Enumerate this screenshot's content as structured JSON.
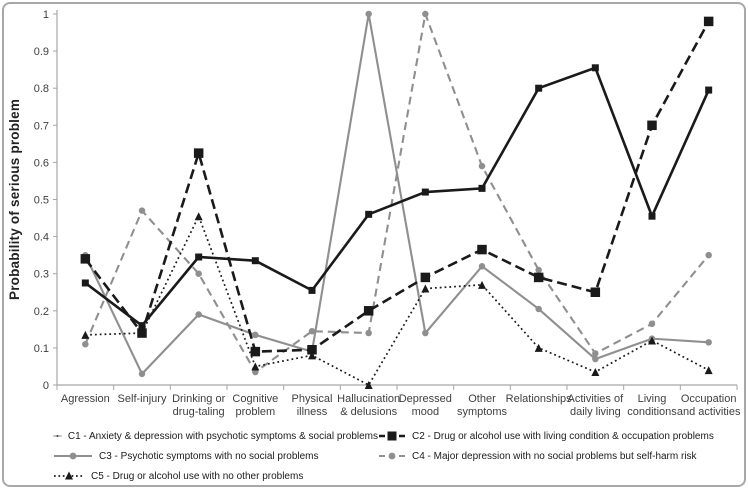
{
  "chart_data": {
    "type": "line",
    "title": "",
    "xlabel": "",
    "ylabel": "Probability of serious problem",
    "ylim": [
      0,
      1
    ],
    "ytick_step": 0.1,
    "ytick_labels": [
      "0",
      "0.1",
      "0.2",
      "0.3",
      "0.4",
      "0.5",
      "0.6",
      "0.7",
      "0.8",
      "0.9",
      "1"
    ],
    "grid": false,
    "legend_position": "bottom",
    "axis_color": "#a6a6a6",
    "tick_label_color": "#3f3f3f",
    "categories": [
      "Agression",
      "Self-injury",
      "Drinking or drug-taling",
      "Cognitive problem",
      "Physical illness",
      "Hallucination & delusions",
      "Depressed mood",
      "Other symptoms",
      "Relationships",
      "Activities of daily living",
      "Living conditions",
      "Occupation and activities"
    ],
    "category_label_lines": [
      [
        "Agression"
      ],
      [
        "Self-injury"
      ],
      [
        "Drinking or",
        "drug-taling"
      ],
      [
        "Cognitive",
        "problem"
      ],
      [
        "Physical",
        "illness"
      ],
      [
        "Hallucination",
        "& delusions"
      ],
      [
        "Depressed",
        "mood"
      ],
      [
        "Other",
        "symptoms"
      ],
      [
        "Relationships"
      ],
      [
        "Activities of",
        "daily living"
      ],
      [
        "Living",
        "conditions"
      ],
      [
        "Occupation",
        "and activities"
      ]
    ],
    "series": [
      {
        "id": "c1",
        "name": "C1 - Anxiety & depression with psychotic symptoms & social problems",
        "line": "solid",
        "marker": "square",
        "color": "#1a1a1a",
        "values": [
          0.275,
          0.16,
          0.345,
          0.335,
          0.255,
          0.46,
          0.52,
          0.53,
          0.8,
          0.855,
          0.455,
          0.795
        ]
      },
      {
        "id": "c2",
        "name": "C2 - Drug or alcohol use with living condition & occupation problems",
        "line": "dashed",
        "marker": "square",
        "color": "#1a1a1a",
        "values": [
          0.34,
          0.14,
          0.625,
          0.09,
          0.095,
          0.2,
          0.29,
          0.365,
          0.29,
          0.25,
          0.7,
          0.98
        ]
      },
      {
        "id": "c3",
        "name": "C3 - Psychotic symptoms with no social problems",
        "line": "solid",
        "marker": "circle",
        "color": "#8f8f8f",
        "values": [
          0.35,
          0.03,
          0.19,
          0.135,
          0.09,
          1.0,
          0.14,
          0.32,
          0.205,
          0.07,
          0.125,
          0.115
        ]
      },
      {
        "id": "c4",
        "name": "C4 - Major depression with no social problems but self-harm risk",
        "line": "dashed",
        "marker": "circle",
        "color": "#8f8f8f",
        "values": [
          0.11,
          0.47,
          0.3,
          0.035,
          0.145,
          0.14,
          1.0,
          0.59,
          0.31,
          0.085,
          0.165,
          0.35
        ]
      },
      {
        "id": "c5",
        "name": "C5 - Drug or alcohol use with no other problems",
        "line": "dotted",
        "marker": "triangle",
        "color": "#1a1a1a",
        "values": [
          0.135,
          0.14,
          0.455,
          0.05,
          0.08,
          0,
          0.26,
          0.27,
          0.1,
          0.035,
          0.12,
          0.04
        ]
      }
    ]
  }
}
